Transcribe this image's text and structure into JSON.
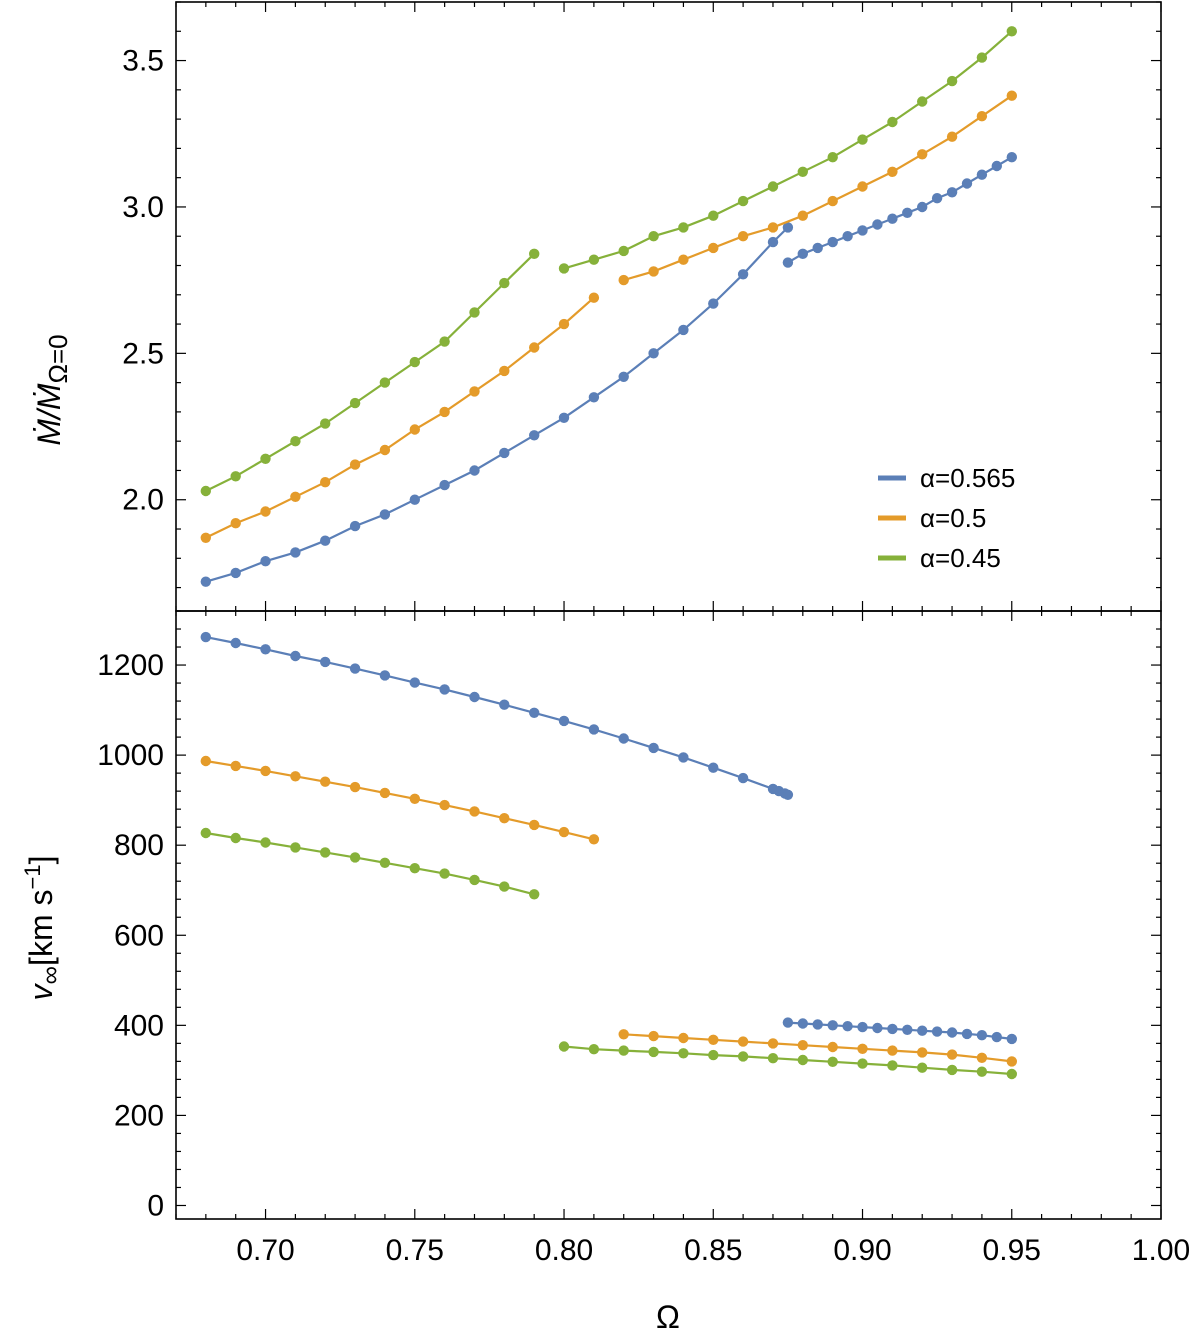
{
  "colors": {
    "alpha_0565": "#5b7fb7",
    "alpha_05": "#e49b2a",
    "alpha_045": "#86b13a"
  },
  "chart_data": [
    {
      "type": "line",
      "panel": "top",
      "ylabel": "Ṁ/Ṁ_{Ω=0}",
      "ylabel_main": "Ṁ/Ṁ",
      "ylabel_sub": "Ω=0",
      "xlim": [
        0.67,
        1.0
      ],
      "ylim": [
        1.62,
        3.7
      ],
      "yticks": [
        2.0,
        2.5,
        3.0,
        3.5
      ],
      "ytick_labels": [
        "2.0",
        "2.5",
        "3.0",
        "3.5"
      ],
      "legend_position": "right",
      "series": [
        {
          "name": "α=0.565",
          "label": "α=0.565",
          "color": "#5b7fb7",
          "segments": [
            {
              "x": [
                0.68,
                0.69,
                0.7,
                0.71,
                0.72,
                0.73,
                0.74,
                0.75,
                0.76,
                0.77,
                0.78,
                0.79,
                0.8,
                0.81,
                0.82,
                0.83,
                0.84,
                0.85,
                0.86,
                0.87,
                0.875
              ],
              "y": [
                1.72,
                1.75,
                1.79,
                1.82,
                1.86,
                1.91,
                1.95,
                2.0,
                2.05,
                2.1,
                2.16,
                2.22,
                2.28,
                2.35,
                2.42,
                2.5,
                2.58,
                2.67,
                2.77,
                2.88,
                2.93
              ]
            },
            {
              "x": [
                0.875,
                0.88,
                0.885,
                0.89,
                0.895,
                0.9,
                0.905,
                0.91,
                0.915,
                0.92,
                0.925,
                0.93,
                0.935,
                0.94,
                0.945,
                0.95
              ],
              "y": [
                2.81,
                2.84,
                2.86,
                2.88,
                2.9,
                2.92,
                2.94,
                2.96,
                2.98,
                3.0,
                3.03,
                3.05,
                3.08,
                3.11,
                3.14,
                3.17
              ]
            }
          ]
        },
        {
          "name": "α=0.5",
          "label": "α=0.5",
          "color": "#e49b2a",
          "segments": [
            {
              "x": [
                0.68,
                0.69,
                0.7,
                0.71,
                0.72,
                0.73,
                0.74,
                0.75,
                0.76,
                0.77,
                0.78,
                0.79,
                0.8,
                0.81
              ],
              "y": [
                1.87,
                1.92,
                1.96,
                2.01,
                2.06,
                2.12,
                2.17,
                2.24,
                2.3,
                2.37,
                2.44,
                2.52,
                2.6,
                2.69
              ]
            },
            {
              "x": [
                0.82,
                0.83,
                0.84,
                0.85,
                0.86,
                0.87,
                0.88,
                0.89,
                0.9,
                0.91,
                0.92,
                0.93,
                0.94,
                0.95
              ],
              "y": [
                2.75,
                2.78,
                2.82,
                2.86,
                2.9,
                2.93,
                2.97,
                3.02,
                3.07,
                3.12,
                3.18,
                3.24,
                3.31,
                3.38
              ]
            }
          ]
        },
        {
          "name": "α=0.45",
          "label": "α=0.45",
          "color": "#86b13a",
          "segments": [
            {
              "x": [
                0.68,
                0.69,
                0.7,
                0.71,
                0.72,
                0.73,
                0.74,
                0.75,
                0.76,
                0.77,
                0.78,
                0.79
              ],
              "y": [
                2.03,
                2.08,
                2.14,
                2.2,
                2.26,
                2.33,
                2.4,
                2.47,
                2.54,
                2.64,
                2.74,
                2.84
              ]
            },
            {
              "x": [
                0.8,
                0.81,
                0.82,
                0.83,
                0.84,
                0.85,
                0.86,
                0.87,
                0.88,
                0.89,
                0.9,
                0.91,
                0.92,
                0.93,
                0.94,
                0.95
              ],
              "y": [
                2.79,
                2.82,
                2.85,
                2.9,
                2.93,
                2.97,
                3.02,
                3.07,
                3.12,
                3.17,
                3.23,
                3.29,
                3.36,
                3.43,
                3.51,
                3.6
              ]
            }
          ]
        }
      ]
    },
    {
      "type": "line",
      "panel": "bottom",
      "xlabel": "Ω",
      "ylabel": "v∞[km s⁻¹]",
      "ylabel_main": "v",
      "ylabel_sub": "∞",
      "ylabel_unit": "[km s",
      "ylabel_exp": "−1",
      "ylabel_close": "]",
      "xlim": [
        0.67,
        1.0
      ],
      "ylim": [
        -30,
        1320
      ],
      "xticks": [
        0.7,
        0.75,
        0.8,
        0.85,
        0.9,
        0.95,
        1.0
      ],
      "xtick_labels": [
        "0.70",
        "0.75",
        "0.80",
        "0.85",
        "0.90",
        "0.95",
        "1.00"
      ],
      "yticks": [
        0,
        200,
        400,
        600,
        800,
        1000,
        1200
      ],
      "ytick_labels": [
        "0",
        "200",
        "400",
        "600",
        "800",
        "1000",
        "1200"
      ],
      "series": [
        {
          "name": "α=0.565",
          "color": "#5b7fb7",
          "segments": [
            {
              "x": [
                0.68,
                0.69,
                0.7,
                0.71,
                0.72,
                0.73,
                0.74,
                0.75,
                0.76,
                0.77,
                0.78,
                0.79,
                0.8,
                0.81,
                0.82,
                0.83,
                0.84,
                0.85,
                0.86,
                0.87,
                0.872,
                0.874,
                0.875
              ],
              "y": [
                1262,
                1249,
                1235,
                1220,
                1207,
                1192,
                1177,
                1161,
                1146,
                1129,
                1112,
                1094,
                1076,
                1057,
                1037,
                1016,
                995,
                972,
                949,
                925,
                920,
                915,
                912
              ]
            },
            {
              "x": [
                0.875,
                0.88,
                0.885,
                0.89,
                0.895,
                0.9,
                0.905,
                0.91,
                0.915,
                0.92,
                0.925,
                0.93,
                0.935,
                0.94,
                0.945,
                0.95
              ],
              "y": [
                406,
                404,
                402,
                400,
                398,
                396,
                394,
                392,
                390,
                388,
                386,
                384,
                381,
                378,
                374,
                370
              ]
            }
          ]
        },
        {
          "name": "α=0.5",
          "color": "#e49b2a",
          "segments": [
            {
              "x": [
                0.68,
                0.69,
                0.7,
                0.71,
                0.72,
                0.73,
                0.74,
                0.75,
                0.76,
                0.77,
                0.78,
                0.79,
                0.8,
                0.81
              ],
              "y": [
                987,
                976,
                965,
                953,
                941,
                929,
                916,
                903,
                889,
                875,
                860,
                845,
                829,
                813
              ]
            },
            {
              "x": [
                0.82,
                0.83,
                0.84,
                0.85,
                0.86,
                0.87,
                0.88,
                0.89,
                0.9,
                0.91,
                0.92,
                0.93,
                0.94,
                0.95
              ],
              "y": [
                380,
                376,
                372,
                368,
                364,
                360,
                356,
                352,
                348,
                344,
                340,
                335,
                328,
                320
              ]
            }
          ]
        },
        {
          "name": "α=0.45",
          "color": "#86b13a",
          "segments": [
            {
              "x": [
                0.68,
                0.69,
                0.7,
                0.71,
                0.72,
                0.73,
                0.74,
                0.75,
                0.76,
                0.77,
                0.78,
                0.79
              ],
              "y": [
                827,
                816,
                806,
                795,
                784,
                773,
                761,
                749,
                737,
                723,
                708,
                691
              ]
            },
            {
              "x": [
                0.8,
                0.81,
                0.82,
                0.83,
                0.84,
                0.85,
                0.86,
                0.87,
                0.88,
                0.89,
                0.9,
                0.91,
                0.92,
                0.93,
                0.94,
                0.95
              ],
              "y": [
                353,
                347,
                344,
                341,
                338,
                334,
                331,
                327,
                323,
                319,
                315,
                311,
                306,
                301,
                297,
                292
              ]
            }
          ]
        }
      ]
    }
  ]
}
